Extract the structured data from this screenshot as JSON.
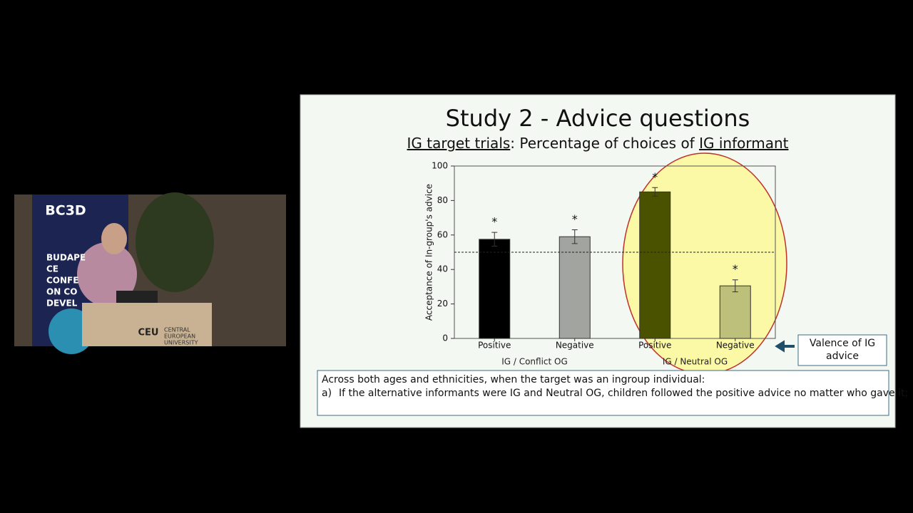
{
  "video": {
    "banner_logo": "BC3D",
    "banner_lines": [
      "BUDAPE",
      "CE",
      "CONFE",
      "ON CO",
      "DEVEL"
    ],
    "podium_logo": "CEU",
    "podium_lines": [
      "CENTRAL",
      "EUROPEAN",
      "UNIVERSITY"
    ]
  },
  "slide": {
    "title": "Study 2 - Advice questions",
    "subtitle_parts": [
      "IG target trials",
      ": Percentage of choices of ",
      "IG informant"
    ],
    "callout": [
      "Valence of IG",
      "advice"
    ],
    "note_lines": [
      "Across both ages and ethnicities, when the target was an ingroup individual:"
    ],
    "note_item": {
      "marker": "a)",
      "text": "If the alternative informants were IG and Neutral OG, children followed the positive advice no matter who gave it;"
    }
  },
  "chart_data": {
    "type": "bar",
    "y_label": "Acceptance of In-group's advice",
    "categories": [
      "Positive",
      "Negative",
      "Positive",
      "Negative"
    ],
    "group_labels": [
      "IG / Conflict OG",
      "IG / Neutral OG"
    ],
    "values": [
      57.5,
      59,
      85,
      30.5
    ],
    "errors": [
      4,
      4,
      2.5,
      3.5
    ],
    "colors": [
      "#000000",
      "#a2a59f",
      "#4a5200",
      "#bcc07a"
    ],
    "value_labels": [
      "*",
      "*",
      "*",
      "*"
    ],
    "reference_line": 50,
    "ylim": [
      0,
      100
    ],
    "yticks": [
      0,
      20,
      40,
      60,
      80,
      100
    ]
  }
}
